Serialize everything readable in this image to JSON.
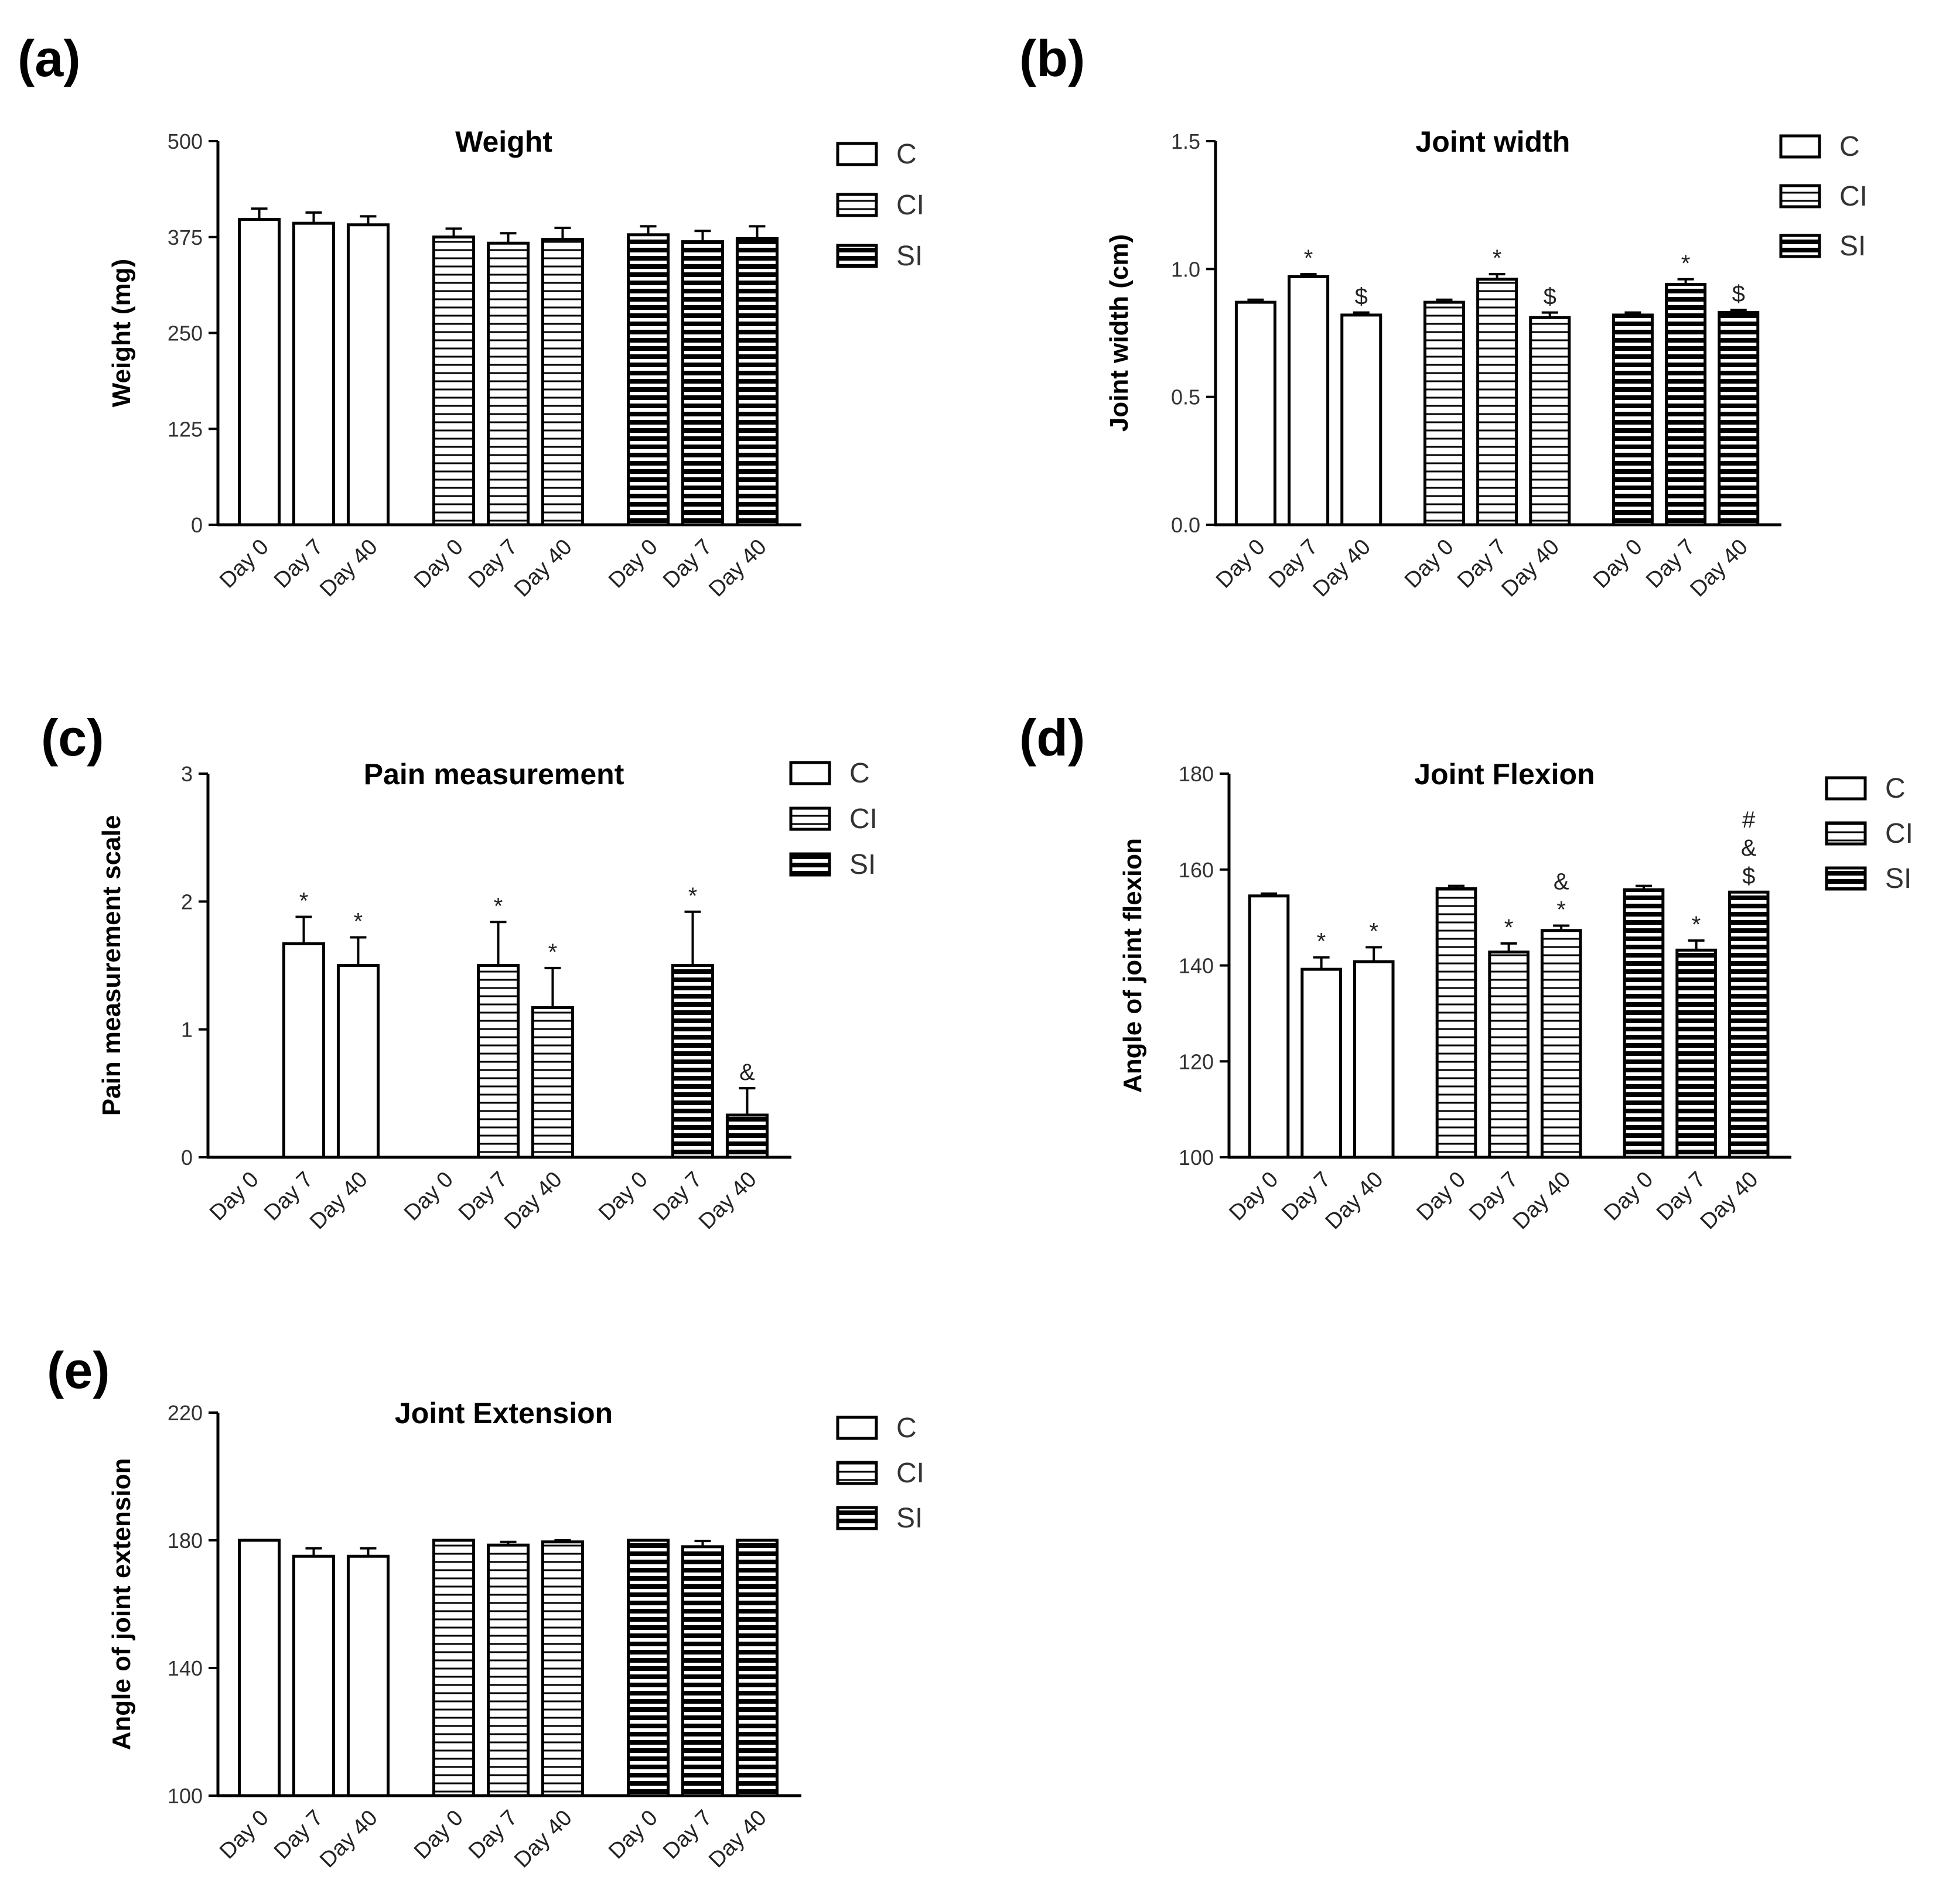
{
  "colors": {
    "ink": "#000000",
    "fill": "#ffffff"
  },
  "legend_labels": [
    "C",
    "CI",
    "SI"
  ],
  "chart_data": [
    {
      "panel_label": "(a)",
      "type": "bar",
      "title": "Weight",
      "ylabel": "Weight (mg)",
      "xlabel": "",
      "ylim": [
        0,
        500
      ],
      "yticks": [
        "0",
        "125",
        "250",
        "375",
        "500"
      ],
      "categories": [
        "Day 0",
        "Day 7",
        "Day 40"
      ],
      "series": [
        {
          "name": "C",
          "values": [
            398,
            393,
            391
          ],
          "errors": [
            14,
            14,
            11
          ],
          "marks": [
            "",
            "",
            ""
          ]
        },
        {
          "name": "CI",
          "values": [
            375,
            367,
            372
          ],
          "errors": [
            11,
            13,
            15
          ],
          "marks": [
            "",
            "",
            ""
          ]
        },
        {
          "name": "SI",
          "values": [
            378,
            369,
            373
          ],
          "errors": [
            11,
            14,
            16
          ],
          "marks": [
            "",
            "",
            ""
          ]
        }
      ],
      "legend": "top-right",
      "grid": false
    },
    {
      "panel_label": "(b)",
      "type": "bar",
      "title": "Joint width",
      "ylabel": "Joint width (cm)",
      "xlabel": "",
      "ylim": [
        0,
        1.5
      ],
      "yticks": [
        "0.0",
        "0.5",
        "1.0",
        "1.5"
      ],
      "categories": [
        "Day 0",
        "Day 7",
        "Day 40"
      ],
      "series": [
        {
          "name": "C",
          "values": [
            0.87,
            0.97,
            0.82
          ],
          "errors": [
            0.01,
            0.01,
            0.01
          ],
          "marks": [
            "",
            "*",
            "$"
          ]
        },
        {
          "name": "CI",
          "values": [
            0.87,
            0.96,
            0.81
          ],
          "errors": [
            0.01,
            0.02,
            0.02
          ],
          "marks": [
            "",
            "*",
            "$"
          ]
        },
        {
          "name": "SI",
          "values": [
            0.82,
            0.94,
            0.83
          ],
          "errors": [
            0.01,
            0.02,
            0.01
          ],
          "marks": [
            "",
            "*",
            "$"
          ]
        }
      ],
      "legend": "top-right",
      "grid": false
    },
    {
      "panel_label": "(c)",
      "type": "bar",
      "title": "Pain measurement",
      "ylabel": "Pain measurement scale",
      "xlabel": "",
      "ylim": [
        0,
        3
      ],
      "yticks": [
        "0",
        "1",
        "2",
        "3"
      ],
      "categories": [
        "Day 0",
        "Day 7",
        "Day 40"
      ],
      "series": [
        {
          "name": "C",
          "values": [
            0,
            1.67,
            1.5
          ],
          "errors": [
            0,
            0.21,
            0.22
          ],
          "marks": [
            "",
            "*",
            "*"
          ]
        },
        {
          "name": "CI",
          "values": [
            0,
            1.5,
            1.17
          ],
          "errors": [
            0,
            0.34,
            0.31
          ],
          "marks": [
            "",
            "*",
            "*"
          ]
        },
        {
          "name": "SI",
          "values": [
            0,
            1.5,
            0.33
          ],
          "errors": [
            0,
            0.42,
            0.21
          ],
          "marks": [
            "",
            "*",
            "&"
          ]
        }
      ],
      "legend": "top-right",
      "grid": false
    },
    {
      "panel_label": "(d)",
      "type": "bar",
      "title": "Joint Flexion",
      "ylabel": "Angle of joint flexion",
      "xlabel": "",
      "ylim": [
        100,
        180
      ],
      "yticks": [
        "100",
        "120",
        "140",
        "160",
        "180"
      ],
      "categories": [
        "Day 0",
        "Day 7",
        "Day 40"
      ],
      "series": [
        {
          "name": "C",
          "values": [
            154.5,
            139.2,
            140.8
          ],
          "errors": [
            0.5,
            2.5,
            3
          ],
          "marks": [
            "",
            "*",
            "*"
          ]
        },
        {
          "name": "CI",
          "values": [
            156,
            142.8,
            147.3
          ],
          "errors": [
            0.6,
            1.8,
            1.0
          ],
          "marks": [
            "",
            "*",
            "*\n&"
          ]
        },
        {
          "name": "SI",
          "values": [
            155.8,
            143.2,
            155.3
          ],
          "errors": [
            0.8,
            2.0,
            0
          ],
          "marks": [
            "",
            "*",
            "$\n&\n#"
          ]
        }
      ],
      "legend": "top-right",
      "grid": false
    },
    {
      "panel_label": "(e)",
      "type": "bar",
      "title": "Joint Extension",
      "ylabel": "Angle of joint extension",
      "xlabel": "",
      "ylim": [
        100,
        220
      ],
      "yticks": [
        "100",
        "140",
        "180",
        "220"
      ],
      "categories": [
        "Day 0",
        "Day 7",
        "Day 40"
      ],
      "series": [
        {
          "name": "C",
          "values": [
            180,
            175,
            175
          ],
          "errors": [
            0,
            2.5,
            2.5
          ],
          "marks": [
            "",
            "",
            ""
          ]
        },
        {
          "name": "CI",
          "values": [
            180,
            178.5,
            179.5
          ],
          "errors": [
            0,
            1,
            0.5
          ],
          "marks": [
            "",
            "",
            ""
          ]
        },
        {
          "name": "SI",
          "values": [
            180,
            178,
            180
          ],
          "errors": [
            0,
            1.8,
            0
          ],
          "marks": [
            "",
            "",
            ""
          ]
        }
      ],
      "legend": "top-right",
      "grid": false
    }
  ]
}
